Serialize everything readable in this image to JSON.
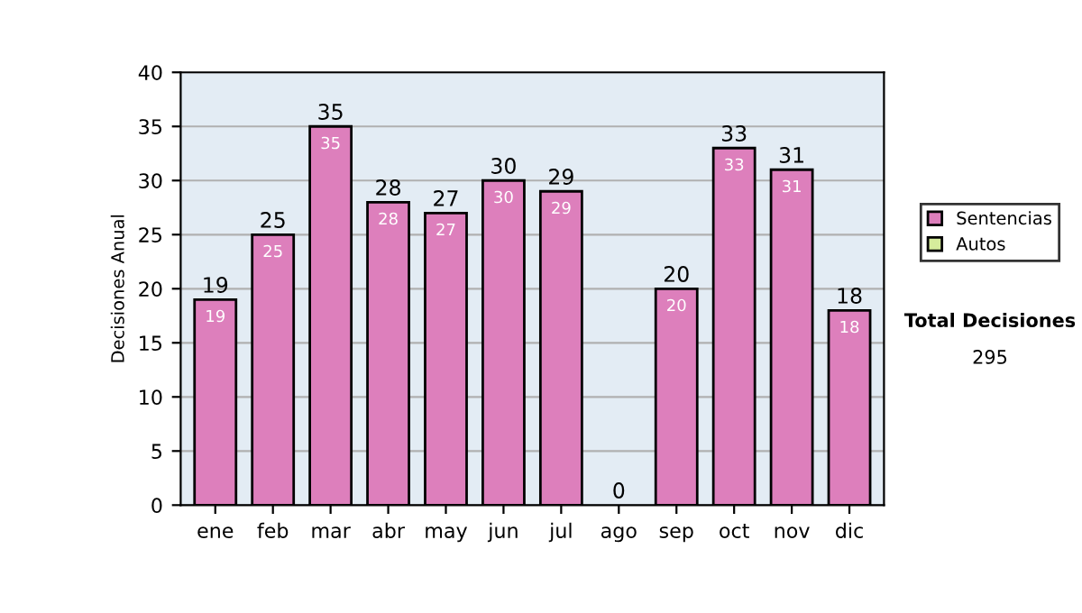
{
  "chart_data": {
    "type": "bar",
    "stacked": true,
    "ylabel": "Decisiones Anual",
    "categories": [
      "ene",
      "feb",
      "mar",
      "abr",
      "may",
      "jun",
      "jul",
      "ago",
      "sep",
      "oct",
      "nov",
      "dic"
    ],
    "series": [
      {
        "name": "Sentencias",
        "color": "#dd7fbc",
        "values": [
          19,
          25,
          35,
          28,
          27,
          30,
          29,
          0,
          20,
          33,
          31,
          18
        ],
        "value_labels": [
          "19",
          "25",
          "35",
          "28",
          "27",
          "30",
          "29",
          null,
          "20",
          "33",
          "31",
          "18"
        ]
      },
      {
        "name": "Autos",
        "color": "#d6ec9c",
        "values": [
          0,
          0,
          0,
          0,
          0,
          0,
          0,
          0,
          0,
          0,
          0,
          0
        ]
      }
    ],
    "totals": [
      "19",
      "25",
      "35",
      "28",
      "27",
      "30",
      "29",
      "0",
      "20",
      "33",
      "31",
      "18"
    ],
    "ylim": [
      0,
      40
    ],
    "yticks": [
      0,
      5,
      10,
      15,
      20,
      25,
      30,
      35,
      40
    ],
    "grid": "y",
    "legend": "right",
    "annotations": [
      "Total Decisiones",
      "295"
    ]
  }
}
